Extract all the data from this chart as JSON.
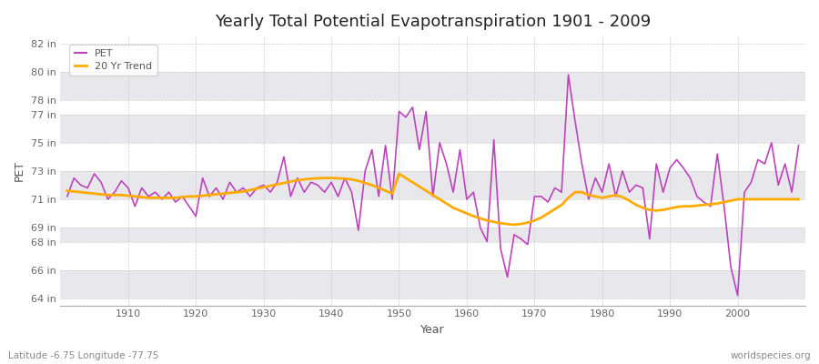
{
  "title": "Yearly Total Potential Evapotranspiration 1901 - 2009",
  "xlabel": "Year",
  "ylabel": "PET",
  "footnote_left": "Latitude -6.75 Longitude -77.75",
  "footnote_right": "worldspecies.org",
  "bg_color": "#ffffff",
  "plot_bg_color": "#ffffff",
  "band_color": "#e8e8ec",
  "pet_color": "#bb44bb",
  "trend_color": "#ffaa00",
  "ylim": [
    63.5,
    82.5
  ],
  "xlim": [
    1900,
    2010
  ],
  "yticks": [
    64,
    66,
    68,
    69,
    71,
    73,
    75,
    77,
    78,
    80,
    82
  ],
  "ytick_labels": [
    "64 in",
    "66 in",
    "68 in",
    "69 in",
    "71 in",
    "73 in",
    "75 in",
    "77 in",
    "78 in",
    "80 in",
    "82 in"
  ],
  "xticks": [
    1910,
    1920,
    1930,
    1940,
    1950,
    1960,
    1970,
    1980,
    1990,
    2000
  ],
  "years": [
    1901,
    1902,
    1903,
    1904,
    1905,
    1906,
    1907,
    1908,
    1909,
    1910,
    1911,
    1912,
    1913,
    1914,
    1915,
    1916,
    1917,
    1918,
    1919,
    1920,
    1921,
    1922,
    1923,
    1924,
    1925,
    1926,
    1927,
    1928,
    1929,
    1930,
    1931,
    1932,
    1933,
    1934,
    1935,
    1936,
    1937,
    1938,
    1939,
    1940,
    1941,
    1942,
    1943,
    1944,
    1945,
    1946,
    1947,
    1948,
    1949,
    1950,
    1951,
    1952,
    1953,
    1954,
    1955,
    1956,
    1957,
    1958,
    1959,
    1960,
    1961,
    1962,
    1963,
    1964,
    1965,
    1966,
    1967,
    1968,
    1969,
    1970,
    1971,
    1972,
    1973,
    1974,
    1975,
    1976,
    1977,
    1978,
    1979,
    1980,
    1981,
    1982,
    1983,
    1984,
    1985,
    1986,
    1987,
    1988,
    1989,
    1990,
    1991,
    1992,
    1993,
    1994,
    1995,
    1996,
    1997,
    1998,
    1999,
    2000,
    2001,
    2002,
    2003,
    2004,
    2005,
    2006,
    2007,
    2008,
    2009
  ],
  "pet_values": [
    71.2,
    72.5,
    72.0,
    71.8,
    72.8,
    72.2,
    71.0,
    71.5,
    72.3,
    71.8,
    70.5,
    71.8,
    71.2,
    71.5,
    71.0,
    71.5,
    70.8,
    71.2,
    70.5,
    69.8,
    72.5,
    71.2,
    71.8,
    71.0,
    72.2,
    71.5,
    71.8,
    71.2,
    71.8,
    72.0,
    71.5,
    72.2,
    74.0,
    71.2,
    72.5,
    71.5,
    72.2,
    72.0,
    71.5,
    72.2,
    71.2,
    72.5,
    71.5,
    68.8,
    73.0,
    74.5,
    71.2,
    74.8,
    71.0,
    77.2,
    76.8,
    77.5,
    74.5,
    77.2,
    71.2,
    75.0,
    73.5,
    71.5,
    74.5,
    71.0,
    71.5,
    69.0,
    68.0,
    75.2,
    67.5,
    65.5,
    68.5,
    68.2,
    67.8,
    71.2,
    71.2,
    70.8,
    71.8,
    71.5,
    79.8,
    76.5,
    73.5,
    71.0,
    72.5,
    71.5,
    73.5,
    71.2,
    73.0,
    71.5,
    72.0,
    71.8,
    68.2,
    73.5,
    71.5,
    73.2,
    73.8,
    73.2,
    72.5,
    71.2,
    70.8,
    70.5,
    74.2,
    70.5,
    66.2,
    64.2,
    71.5,
    72.2,
    73.8,
    73.5,
    75.0,
    72.0,
    73.5,
    71.5,
    74.8
  ],
  "trend_values": [
    71.6,
    71.55,
    71.5,
    71.45,
    71.4,
    71.35,
    71.3,
    71.3,
    71.3,
    71.25,
    71.2,
    71.15,
    71.1,
    71.1,
    71.1,
    71.1,
    71.1,
    71.15,
    71.2,
    71.2,
    71.25,
    71.3,
    71.35,
    71.4,
    71.45,
    71.5,
    71.55,
    71.65,
    71.75,
    71.85,
    71.95,
    72.05,
    72.15,
    72.25,
    72.35,
    72.4,
    72.45,
    72.48,
    72.5,
    72.5,
    72.48,
    72.45,
    72.4,
    72.3,
    72.15,
    72.0,
    71.8,
    71.6,
    71.4,
    72.8,
    72.5,
    72.2,
    71.9,
    71.6,
    71.3,
    71.0,
    70.7,
    70.4,
    70.2,
    70.0,
    69.8,
    69.65,
    69.5,
    69.4,
    69.3,
    69.25,
    69.2,
    69.25,
    69.35,
    69.5,
    69.7,
    70.0,
    70.3,
    70.6,
    71.1,
    71.5,
    71.5,
    71.3,
    71.2,
    71.1,
    71.2,
    71.3,
    71.15,
    70.9,
    70.6,
    70.4,
    70.25,
    70.2,
    70.25,
    70.35,
    70.45,
    70.5,
    70.5,
    70.55,
    70.6,
    70.65,
    70.7,
    70.8,
    70.9,
    71.0,
    71.0,
    71.0,
    71.0,
    71.0,
    71.0,
    71.0,
    71.0,
    71.0,
    71.0
  ]
}
